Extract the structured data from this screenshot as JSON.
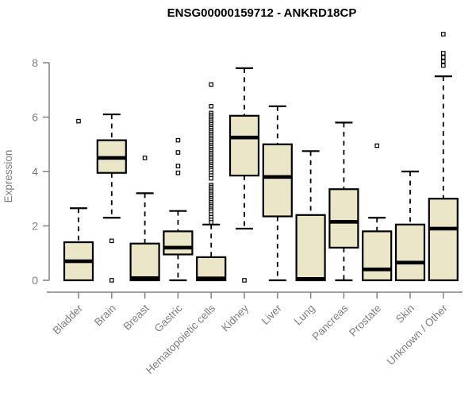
{
  "chart_data": {
    "type": "boxplot",
    "title": "ENSG00000159712 - ANKRD18CP",
    "ylabel": "Expression",
    "xlabel": "",
    "yticks": [
      0,
      2,
      4,
      6,
      8
    ],
    "ylim": [
      0,
      9.2
    ],
    "grid": false,
    "legend": "none",
    "box_fill": "#ece6c8",
    "box_stroke": "#000000",
    "axis_color": "#808080",
    "label_color": "#7e7e7e",
    "categories": [
      "Bladder",
      "Brain",
      "Breast",
      "Gastric",
      "Hematopoietic cells",
      "Kidney",
      "Liver",
      "Lung",
      "Pancreas",
      "Prostate",
      "Skin",
      "Unknown / Other"
    ],
    "series": [
      {
        "name": "Bladder",
        "whisker_low": 0,
        "q1": 0,
        "median": 0.7,
        "q3": 1.4,
        "whisker_high": 2.65,
        "outliers": [
          5.85
        ]
      },
      {
        "name": "Brain",
        "whisker_low": 2.3,
        "q1": 3.95,
        "median": 4.5,
        "q3": 5.15,
        "whisker_high": 6.1,
        "outliers": [
          1.45,
          0
        ]
      },
      {
        "name": "Breast",
        "whisker_low": 0,
        "q1": 0,
        "median": 0.08,
        "q3": 1.35,
        "whisker_high": 3.2,
        "outliers": [
          4.5
        ]
      },
      {
        "name": "Gastric",
        "whisker_low": 0,
        "q1": 0.95,
        "median": 1.2,
        "q3": 1.8,
        "whisker_high": 2.55,
        "outliers": [
          5.15,
          4.7,
          4.2,
          3.95
        ]
      },
      {
        "name": "Hematopoietic cells",
        "whisker_low": 0,
        "q1": 0,
        "median": 0.07,
        "q3": 0.85,
        "whisker_high": 2.05,
        "outliers": [
          7.2,
          6.4,
          6.15,
          6.08,
          6.01,
          5.94,
          5.87,
          5.8,
          5.73,
          5.66,
          5.59,
          5.52,
          5.45,
          5.38,
          5.31,
          5.24,
          5.17,
          5.1,
          5.03,
          4.96,
          4.89,
          4.82,
          4.75,
          4.68,
          4.61,
          4.54,
          4.47,
          4.4,
          4.33,
          4.26,
          4.19,
          4.12,
          4.05,
          3.95,
          3.85,
          3.75,
          3.5,
          3.43,
          3.36,
          3.29,
          3.22,
          3.15,
          3.08,
          3.01,
          2.94,
          2.87,
          2.8,
          2.73,
          2.66,
          2.59,
          2.52,
          2.42,
          2.32,
          2.22,
          2.13
        ]
      },
      {
        "name": "Kidney",
        "whisker_low": 1.9,
        "q1": 3.85,
        "median": 5.25,
        "q3": 6.05,
        "whisker_high": 7.8,
        "outliers": [
          0
        ]
      },
      {
        "name": "Liver",
        "whisker_low": 0,
        "q1": 2.35,
        "median": 3.8,
        "q3": 5.0,
        "whisker_high": 6.4,
        "outliers": []
      },
      {
        "name": "Lung",
        "whisker_low": 0,
        "q1": 0,
        "median": 0.05,
        "q3": 2.4,
        "whisker_high": 4.75,
        "outliers": []
      },
      {
        "name": "Pancreas",
        "whisker_low": 0,
        "q1": 1.2,
        "median": 2.15,
        "q3": 3.35,
        "whisker_high": 5.8,
        "outliers": []
      },
      {
        "name": "Prostate",
        "whisker_low": 0,
        "q1": 0,
        "median": 0.4,
        "q3": 1.8,
        "whisker_high": 2.3,
        "outliers": [
          4.95
        ]
      },
      {
        "name": "Skin",
        "whisker_low": 0,
        "q1": 0,
        "median": 0.65,
        "q3": 2.05,
        "whisker_high": 4.0,
        "outliers": []
      },
      {
        "name": "Unknown / Other",
        "whisker_low": 0,
        "q1": 0,
        "median": 1.9,
        "q3": 3.0,
        "whisker_high": 7.5,
        "outliers": [
          9.05,
          8.35,
          8.2,
          8.05,
          7.9
        ]
      }
    ]
  }
}
